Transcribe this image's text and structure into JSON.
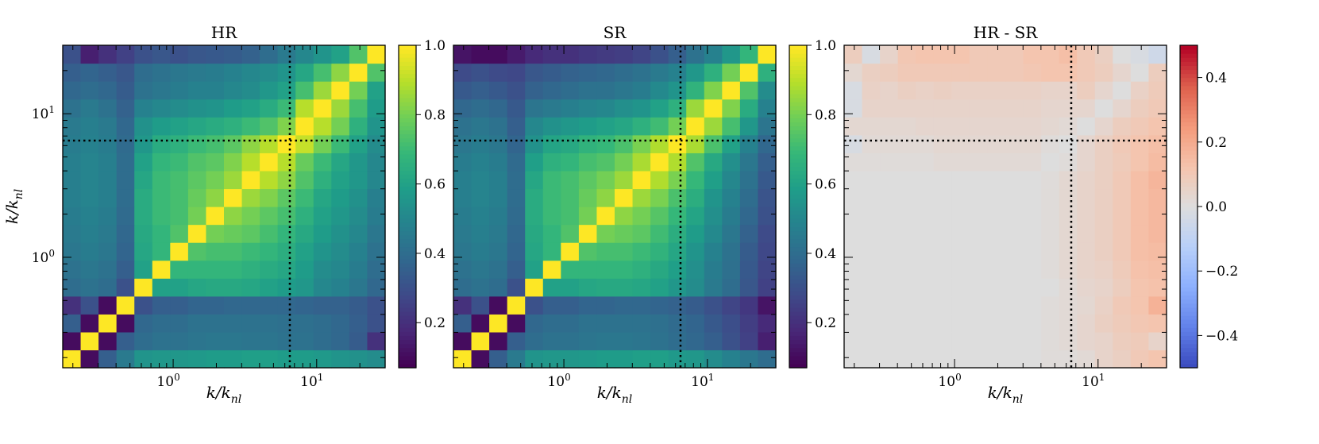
{
  "chart_data": [
    {
      "type": "heatmap",
      "title": "HR",
      "xlabel": "k/k_nl",
      "ylabel": "k/k_nl",
      "x_scale": "log",
      "y_scale": "log",
      "x_ticks": [
        {
          "value": 1,
          "label": "10^0"
        },
        {
          "value": 10,
          "label": "10^1"
        }
      ],
      "y_ticks": [
        {
          "value": 1,
          "label": "10^0"
        },
        {
          "value": 10,
          "label": "10^1"
        }
      ],
      "xlim": [
        0.17,
        30
      ],
      "ylim": [
        0.17,
        30
      ],
      "reference_lines": {
        "k_vertical": 6.5,
        "k_horizontal": 6.5,
        "style": "dotted"
      },
      "colormap": "viridis",
      "clim": [
        0.07,
        1.0
      ],
      "colorbar_ticks": [
        0.2,
        0.4,
        0.6,
        0.8,
        1.0
      ],
      "colorbar_tick_labels": [
        "0.2",
        "0.4",
        "0.6",
        "0.8",
        "1.0"
      ],
      "grid_size": 18,
      "row_order": "bottom-to-top",
      "values": [
        [
          1.0,
          0.1,
          0.35,
          0.45,
          0.55,
          0.56,
          0.56,
          0.57,
          0.58,
          0.58,
          0.59,
          0.59,
          0.58,
          0.58,
          0.57,
          0.55,
          0.54,
          0.52
        ],
        [
          0.1,
          1.0,
          0.1,
          0.35,
          0.4,
          0.42,
          0.42,
          0.43,
          0.44,
          0.44,
          0.43,
          0.43,
          0.42,
          0.42,
          0.4,
          0.38,
          0.34,
          0.2
        ],
        [
          0.35,
          0.1,
          1.0,
          0.1,
          0.38,
          0.4,
          0.4,
          0.42,
          0.42,
          0.42,
          0.42,
          0.42,
          0.41,
          0.41,
          0.4,
          0.38,
          0.35,
          0.3
        ],
        [
          0.2,
          0.3,
          0.1,
          1.0,
          0.3,
          0.35,
          0.35,
          0.37,
          0.37,
          0.38,
          0.38,
          0.38,
          0.38,
          0.37,
          0.36,
          0.36,
          0.34,
          0.3
        ],
        [
          0.4,
          0.42,
          0.4,
          0.3,
          1.0,
          0.6,
          0.6,
          0.62,
          0.63,
          0.63,
          0.62,
          0.6,
          0.58,
          0.56,
          0.5,
          0.48,
          0.44,
          0.38
        ],
        [
          0.42,
          0.44,
          0.42,
          0.35,
          0.6,
          1.0,
          0.68,
          0.68,
          0.68,
          0.68,
          0.66,
          0.64,
          0.62,
          0.58,
          0.52,
          0.5,
          0.46,
          0.4
        ],
        [
          0.44,
          0.46,
          0.44,
          0.37,
          0.62,
          0.68,
          1.0,
          0.74,
          0.72,
          0.72,
          0.7,
          0.68,
          0.65,
          0.6,
          0.55,
          0.52,
          0.48,
          0.42
        ],
        [
          0.45,
          0.47,
          0.45,
          0.38,
          0.63,
          0.68,
          0.74,
          1.0,
          0.8,
          0.78,
          0.76,
          0.72,
          0.68,
          0.63,
          0.58,
          0.54,
          0.5,
          0.44
        ],
        [
          0.46,
          0.48,
          0.46,
          0.39,
          0.64,
          0.7,
          0.72,
          0.8,
          1.0,
          0.84,
          0.8,
          0.76,
          0.72,
          0.66,
          0.6,
          0.56,
          0.52,
          0.46
        ],
        [
          0.47,
          0.49,
          0.47,
          0.4,
          0.64,
          0.7,
          0.72,
          0.78,
          0.84,
          1.0,
          0.86,
          0.82,
          0.76,
          0.7,
          0.62,
          0.58,
          0.54,
          0.47
        ],
        [
          0.47,
          0.49,
          0.47,
          0.4,
          0.62,
          0.7,
          0.72,
          0.76,
          0.8,
          0.86,
          1.0,
          0.9,
          0.84,
          0.74,
          0.66,
          0.6,
          0.56,
          0.5
        ],
        [
          0.47,
          0.49,
          0.47,
          0.4,
          0.6,
          0.68,
          0.7,
          0.74,
          0.76,
          0.82,
          0.9,
          1.0,
          0.9,
          0.78,
          0.7,
          0.62,
          0.56,
          0.5
        ],
        [
          0.46,
          0.48,
          0.46,
          0.39,
          0.56,
          0.64,
          0.66,
          0.7,
          0.72,
          0.76,
          0.84,
          0.9,
          1.0,
          0.92,
          0.8,
          0.7,
          0.6,
          0.52
        ],
        [
          0.45,
          0.47,
          0.45,
          0.38,
          0.54,
          0.58,
          0.6,
          0.62,
          0.64,
          0.66,
          0.7,
          0.74,
          0.82,
          1.0,
          0.9,
          0.8,
          0.66,
          0.55
        ],
        [
          0.42,
          0.45,
          0.42,
          0.36,
          0.48,
          0.5,
          0.52,
          0.54,
          0.55,
          0.58,
          0.6,
          0.64,
          0.7,
          0.9,
          1.0,
          0.86,
          0.72,
          0.58
        ],
        [
          0.38,
          0.4,
          0.38,
          0.34,
          0.42,
          0.44,
          0.46,
          0.48,
          0.48,
          0.5,
          0.52,
          0.56,
          0.6,
          0.72,
          0.86,
          1.0,
          0.8,
          0.6
        ],
        [
          0.35,
          0.37,
          0.35,
          0.32,
          0.4,
          0.42,
          0.44,
          0.45,
          0.46,
          0.48,
          0.5,
          0.52,
          0.55,
          0.62,
          0.72,
          0.84,
          1.0,
          0.74
        ],
        [
          0.3,
          0.15,
          0.2,
          0.25,
          0.3,
          0.32,
          0.3,
          0.32,
          0.33,
          0.34,
          0.36,
          0.4,
          0.45,
          0.5,
          0.55,
          0.6,
          0.74,
          1.0
        ]
      ]
    },
    {
      "type": "heatmap",
      "title": "SR",
      "xlabel": "k/k_nl",
      "ylabel": "",
      "x_scale": "log",
      "y_scale": "log",
      "x_ticks": [
        {
          "value": 1,
          "label": "10^0"
        },
        {
          "value": 10,
          "label": "10^1"
        }
      ],
      "xlim": [
        0.17,
        30
      ],
      "ylim": [
        0.17,
        30
      ],
      "reference_lines": {
        "k_vertical": 6.5,
        "k_horizontal": 6.5,
        "style": "dotted"
      },
      "colormap": "viridis",
      "clim": [
        0.07,
        1.0
      ],
      "colorbar_ticks": [
        0.2,
        0.4,
        0.6,
        0.8,
        1.0
      ],
      "colorbar_tick_labels": [
        "0.2",
        "0.4",
        "0.6",
        "0.8",
        "1.0"
      ],
      "grid_size": 18,
      "row_order": "bottom-to-top",
      "values": [
        [
          1.0,
          0.1,
          0.35,
          0.45,
          0.55,
          0.56,
          0.56,
          0.57,
          0.58,
          0.58,
          0.59,
          0.59,
          0.57,
          0.56,
          0.52,
          0.48,
          0.44,
          0.4
        ],
        [
          0.1,
          1.0,
          0.1,
          0.35,
          0.4,
          0.42,
          0.42,
          0.43,
          0.44,
          0.44,
          0.43,
          0.42,
          0.4,
          0.38,
          0.35,
          0.3,
          0.25,
          0.15
        ],
        [
          0.35,
          0.1,
          1.0,
          0.1,
          0.38,
          0.4,
          0.4,
          0.42,
          0.42,
          0.42,
          0.42,
          0.41,
          0.39,
          0.37,
          0.33,
          0.29,
          0.24,
          0.18
        ],
        [
          0.2,
          0.3,
          0.1,
          1.0,
          0.3,
          0.35,
          0.35,
          0.37,
          0.37,
          0.38,
          0.38,
          0.37,
          0.36,
          0.34,
          0.3,
          0.26,
          0.22,
          0.12
        ],
        [
          0.4,
          0.42,
          0.4,
          0.3,
          1.0,
          0.6,
          0.6,
          0.62,
          0.63,
          0.63,
          0.62,
          0.6,
          0.56,
          0.52,
          0.45,
          0.4,
          0.32,
          0.25
        ],
        [
          0.42,
          0.44,
          0.42,
          0.35,
          0.6,
          1.0,
          0.68,
          0.68,
          0.68,
          0.68,
          0.66,
          0.63,
          0.59,
          0.53,
          0.46,
          0.41,
          0.33,
          0.26
        ],
        [
          0.44,
          0.46,
          0.44,
          0.37,
          0.62,
          0.68,
          1.0,
          0.74,
          0.72,
          0.72,
          0.7,
          0.67,
          0.62,
          0.55,
          0.48,
          0.42,
          0.34,
          0.27
        ],
        [
          0.45,
          0.47,
          0.45,
          0.38,
          0.63,
          0.68,
          0.74,
          1.0,
          0.8,
          0.78,
          0.76,
          0.71,
          0.65,
          0.58,
          0.51,
          0.44,
          0.36,
          0.28
        ],
        [
          0.46,
          0.48,
          0.46,
          0.39,
          0.64,
          0.7,
          0.72,
          0.8,
          1.0,
          0.84,
          0.8,
          0.75,
          0.69,
          0.61,
          0.53,
          0.46,
          0.38,
          0.3
        ],
        [
          0.47,
          0.49,
          0.47,
          0.4,
          0.64,
          0.7,
          0.72,
          0.78,
          0.84,
          1.0,
          0.86,
          0.81,
          0.73,
          0.65,
          0.55,
          0.48,
          0.4,
          0.31
        ],
        [
          0.47,
          0.49,
          0.47,
          0.4,
          0.62,
          0.7,
          0.72,
          0.76,
          0.8,
          0.86,
          1.0,
          0.89,
          0.81,
          0.69,
          0.59,
          0.5,
          0.42,
          0.33
        ],
        [
          0.46,
          0.48,
          0.46,
          0.39,
          0.59,
          0.66,
          0.68,
          0.72,
          0.74,
          0.8,
          0.88,
          1.0,
          0.89,
          0.74,
          0.63,
          0.53,
          0.44,
          0.35
        ],
        [
          0.44,
          0.46,
          0.44,
          0.37,
          0.54,
          0.61,
          0.63,
          0.67,
          0.69,
          0.73,
          0.81,
          0.89,
          1.0,
          0.88,
          0.73,
          0.6,
          0.48,
          0.38
        ],
        [
          0.42,
          0.44,
          0.42,
          0.35,
          0.5,
          0.54,
          0.56,
          0.58,
          0.6,
          0.62,
          0.66,
          0.71,
          0.8,
          1.0,
          0.86,
          0.72,
          0.56,
          0.43
        ],
        [
          0.38,
          0.4,
          0.38,
          0.33,
          0.43,
          0.45,
          0.47,
          0.49,
          0.5,
          0.53,
          0.55,
          0.6,
          0.66,
          0.86,
          1.0,
          0.82,
          0.64,
          0.48
        ],
        [
          0.33,
          0.35,
          0.33,
          0.3,
          0.36,
          0.38,
          0.4,
          0.42,
          0.42,
          0.44,
          0.46,
          0.51,
          0.55,
          0.67,
          0.82,
          1.0,
          0.74,
          0.52
        ],
        [
          0.28,
          0.3,
          0.28,
          0.27,
          0.32,
          0.34,
          0.36,
          0.37,
          0.38,
          0.4,
          0.42,
          0.45,
          0.48,
          0.56,
          0.66,
          0.8,
          1.0,
          0.66
        ],
        [
          0.12,
          0.1,
          0.1,
          0.14,
          0.18,
          0.2,
          0.2,
          0.22,
          0.23,
          0.24,
          0.26,
          0.3,
          0.35,
          0.42,
          0.48,
          0.56,
          0.68,
          1.0
        ]
      ]
    },
    {
      "type": "heatmap",
      "title": "HR - SR",
      "xlabel": "k/k_nl",
      "ylabel": "",
      "x_scale": "log",
      "y_scale": "log",
      "x_ticks": [
        {
          "value": 1,
          "label": "10^0"
        },
        {
          "value": 10,
          "label": "10^1"
        }
      ],
      "xlim": [
        0.17,
        30
      ],
      "ylim": [
        0.17,
        30
      ],
      "reference_lines": {
        "k_vertical": 6.5,
        "k_horizontal": 6.5,
        "style": "dotted"
      },
      "colormap": "coolwarm",
      "clim": [
        -0.5,
        0.5
      ],
      "colorbar_ticks": [
        -0.4,
        -0.2,
        0.0,
        0.2,
        0.4
      ],
      "colorbar_tick_labels": [
        "−0.4",
        "−0.2",
        "0.0",
        "0.2",
        "0.4"
      ],
      "grid_size": 18,
      "row_order": "bottom-to-top",
      "values": [
        [
          0.0,
          0.0,
          0.0,
          0.0,
          0.0,
          0.0,
          0.0,
          0.0,
          0.0,
          0.0,
          0.0,
          0.01,
          0.01,
          0.02,
          0.05,
          0.07,
          0.1,
          0.12
        ],
        [
          0.0,
          0.0,
          0.0,
          0.0,
          0.0,
          0.0,
          0.0,
          0.0,
          0.0,
          0.0,
          0.0,
          0.01,
          0.02,
          0.04,
          0.05,
          0.08,
          0.09,
          0.05
        ],
        [
          0.0,
          0.0,
          0.0,
          0.0,
          0.0,
          0.0,
          0.0,
          0.0,
          0.0,
          0.0,
          0.0,
          0.01,
          0.02,
          0.04,
          0.07,
          0.09,
          0.11,
          0.12
        ],
        [
          0.0,
          0.0,
          0.0,
          0.0,
          0.0,
          0.0,
          0.0,
          0.0,
          0.0,
          0.0,
          0.0,
          0.01,
          0.02,
          0.03,
          0.06,
          0.1,
          0.12,
          0.18
        ],
        [
          0.0,
          0.0,
          0.0,
          0.0,
          0.0,
          0.0,
          0.0,
          0.0,
          0.0,
          0.0,
          0.0,
          0.0,
          0.02,
          0.04,
          0.05,
          0.08,
          0.12,
          0.13
        ],
        [
          0.0,
          0.0,
          0.0,
          0.0,
          0.0,
          0.0,
          0.0,
          0.0,
          0.0,
          0.0,
          0.0,
          0.01,
          0.03,
          0.05,
          0.06,
          0.09,
          0.13,
          0.14
        ],
        [
          0.0,
          0.0,
          0.0,
          0.0,
          0.0,
          0.0,
          0.0,
          0.0,
          0.0,
          0.0,
          0.0,
          0.01,
          0.03,
          0.05,
          0.07,
          0.1,
          0.14,
          0.15
        ],
        [
          0.0,
          0.0,
          0.0,
          0.0,
          0.0,
          0.0,
          0.0,
          0.0,
          0.0,
          0.0,
          0.0,
          0.01,
          0.03,
          0.05,
          0.07,
          0.1,
          0.14,
          0.16
        ],
        [
          0.0,
          0.0,
          0.0,
          0.0,
          0.0,
          0.0,
          0.0,
          0.0,
          0.0,
          0.0,
          0.0,
          0.01,
          0.03,
          0.05,
          0.07,
          0.1,
          0.14,
          0.16
        ],
        [
          0.0,
          0.0,
          0.0,
          0.0,
          0.0,
          0.0,
          0.0,
          0.0,
          0.0,
          0.0,
          0.0,
          0.01,
          0.03,
          0.05,
          0.07,
          0.1,
          0.14,
          0.16
        ],
        [
          0.0,
          0.0,
          0.0,
          0.0,
          0.0,
          0.0,
          0.0,
          0.0,
          0.0,
          0.0,
          0.0,
          0.01,
          0.03,
          0.05,
          0.07,
          0.1,
          0.14,
          0.17
        ],
        [
          0.01,
          0.01,
          0.01,
          0.01,
          0.01,
          0.02,
          0.02,
          0.02,
          0.02,
          0.02,
          0.02,
          0.0,
          0.01,
          0.04,
          0.07,
          0.09,
          0.12,
          0.15
        ],
        [
          -0.02,
          0.02,
          0.02,
          0.02,
          0.02,
          0.03,
          0.03,
          0.03,
          0.03,
          0.03,
          0.03,
          0.01,
          0.0,
          0.04,
          0.07,
          0.1,
          0.12,
          0.14
        ],
        [
          0.03,
          0.03,
          0.03,
          0.03,
          0.04,
          0.04,
          0.04,
          0.04,
          0.04,
          0.04,
          0.04,
          0.03,
          0.02,
          0.0,
          0.04,
          0.08,
          0.1,
          0.12
        ],
        [
          -0.02,
          0.05,
          0.05,
          0.05,
          0.05,
          0.05,
          0.05,
          0.05,
          0.05,
          0.05,
          0.05,
          0.04,
          0.04,
          0.04,
          0.0,
          0.04,
          0.08,
          0.1
        ],
        [
          -0.02,
          0.06,
          0.05,
          0.07,
          0.06,
          0.07,
          0.06,
          0.06,
          0.06,
          0.06,
          0.06,
          0.05,
          0.05,
          0.08,
          0.04,
          0.0,
          0.06,
          0.09
        ],
        [
          0.03,
          0.07,
          0.08,
          0.1,
          0.1,
          0.1,
          0.1,
          0.1,
          0.1,
          0.1,
          0.11,
          0.12,
          0.12,
          0.1,
          0.08,
          0.04,
          0.0,
          0.08
        ],
        [
          0.08,
          -0.02,
          0.05,
          0.11,
          0.12,
          0.12,
          0.12,
          0.1,
          0.1,
          0.1,
          0.12,
          0.12,
          0.14,
          0.1,
          0.07,
          0.0,
          -0.02,
          -0.05
        ]
      ]
    }
  ]
}
